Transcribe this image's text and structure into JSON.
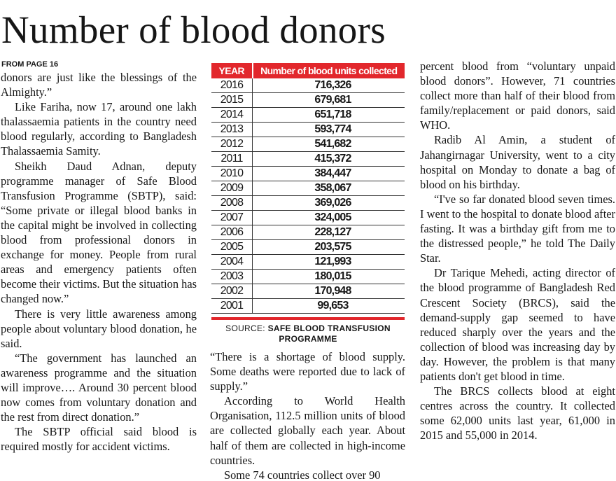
{
  "header": {
    "title": "Number of blood donors",
    "jump": "FROM PAGE 16"
  },
  "table": {
    "header": [
      "YEAR",
      "Number of blood units collected"
    ],
    "rows": [
      [
        "2016",
        "716,326"
      ],
      [
        "2015",
        "679,681"
      ],
      [
        "2014",
        "651,718"
      ],
      [
        "2013",
        "593,774"
      ],
      [
        "2012",
        "541,682"
      ],
      [
        "2011",
        "415,372"
      ],
      [
        "2010",
        "384,447"
      ],
      [
        "2009",
        "358,067"
      ],
      [
        "2008",
        "369,026"
      ],
      [
        "2007",
        "324,005"
      ],
      [
        "2006",
        "228,127"
      ],
      [
        "2005",
        "203,575"
      ],
      [
        "2004",
        "121,993"
      ],
      [
        "2003",
        "180,015"
      ],
      [
        "2002",
        "170,948"
      ],
      [
        "2001",
        "99,653"
      ]
    ],
    "source_label": "SOURCE:",
    "source_name": "SAFE BLOOD TRANSFUSION PROGRAMME"
  },
  "columns": [
    {
      "paragraphs": [
        "donors are just like the blessings of the Almighty.”",
        "Like Fariha, now 17, around one lakh thalassaemia patients in the country need blood regularly, according to Bangladesh Thalassaemia Samity.",
        "Sheikh Daud Adnan, deputy programme manager of Safe Blood Transfusion Programme (SBTP), said: “Some private or illegal blood banks in the capital might be involved in collecting blood from professional donors in exchange for money. People from rural areas and emergency patients often become their victims. But the situation has changed now.”",
        "There is very little awareness among people about voluntary blood donation, he said.",
        "“The government has launched an awareness programme and the situation will improve…. Around 30 percent blood now comes from voluntary donation and the rest from direct donation.”",
        "The SBTP official said blood is required mostly for accident victims."
      ]
    },
    {
      "paragraphs": [
        "“There is a shortage of blood supply. Some deaths were reported due to lack of supply.”",
        "According to World Health Organisation, 112.5 million units of blood are collected globally each year. About half of them are collected in high-income countries.",
        "Some 74 countries collect over 90"
      ]
    },
    {
      "paragraphs": [
        "percent blood from “voluntary unpaid blood donors”. However, 71 countries collect more than half of their blood from family/replacement or paid donors, said WHO.",
        "Radib Al Amin, a student of Jahangirnagar University, went to a city hospital on Monday to donate a bag of blood on his birthday.",
        "“I've so far donated blood seven times. I went to the hospital to donate blood after fasting. It was a birthday gift from me to the distressed people,” he told The Daily Star.",
        "Dr Tarique Mehedi, acting director of the blood programme of Bangladesh Red Crescent Society (BRCS), said the demand-supply gap seemed to have reduced sharply over the years and the collection of blood was increasing day by day. However, the problem is that many patients don't get blood in time.",
        "The BRCS collects blood at eight centres across the country. It collected some 62,000 units last year, 61,000 in 2015 and 55,000 in 2014."
      ]
    }
  ]
}
